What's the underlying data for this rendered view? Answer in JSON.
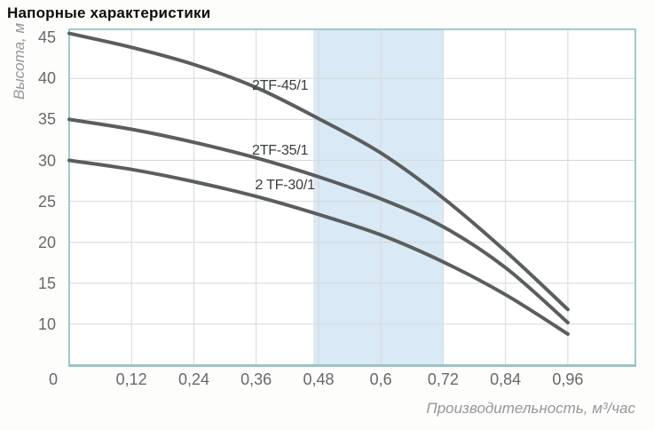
{
  "title": "Напорные характеристики",
  "chart_data": {
    "type": "line",
    "title": "Напорные характеристики",
    "xlabel": "Производительность, м³/час",
    "ylabel": "Высота, м",
    "x": [
      0,
      0.12,
      0.24,
      0.36,
      0.48,
      0.6,
      0.72,
      0.84,
      0.96
    ],
    "xtick_labels": [
      "0",
      "0,12",
      "0,24",
      "0,36",
      "0,48",
      "0,6",
      "0,72",
      "0,84",
      "0,96"
    ],
    "ytick_labels": [
      "45",
      "40",
      "35",
      "30",
      "25",
      "20",
      "15",
      "10"
    ],
    "yticks": [
      45,
      40,
      35,
      30,
      25,
      20,
      15,
      10
    ],
    "ygrid": [
      10,
      15,
      20,
      25,
      30,
      35,
      40
    ],
    "xlim": [
      0,
      1.09
    ],
    "ylim": [
      5,
      46
    ],
    "grid": true,
    "legend_position": "inline-labels",
    "highlight_band": {
      "x_start": 0.47,
      "x_end": 0.72
    },
    "series": [
      {
        "name": "2TF-45/1",
        "values": [
          45.5,
          43.8,
          41.7,
          38.9,
          35.1,
          30.9,
          25.4,
          18.9,
          11.8
        ],
        "label_pos": {
          "x": 0.352,
          "y": 39.2
        }
      },
      {
        "name": "2TF-35/1",
        "values": [
          35.0,
          33.8,
          32.2,
          30.3,
          28.0,
          25.3,
          21.9,
          16.9,
          10.2
        ],
        "label_pos": {
          "x": 0.352,
          "y": 31.2
        }
      },
      {
        "name": "2 TF-30/1",
        "values": [
          30.0,
          28.9,
          27.4,
          25.6,
          23.4,
          20.9,
          17.6,
          13.6,
          8.8
        ],
        "label_pos": {
          "x": 0.358,
          "y": 27.0
        }
      }
    ]
  },
  "colors": {
    "background": "#fdfdfb",
    "plot_background": "#ffffff",
    "band": "#d9e9f5",
    "grid": "#d6d8d8",
    "frame": "#a0c9ce",
    "frame_bottom": "#9ac3c8",
    "curve": "#5a5e5f",
    "tick_text": "#66696b",
    "curve_label_text": "#393c3e",
    "axis_title_text": "#93989a",
    "title_text": "#0d0d0d"
  }
}
